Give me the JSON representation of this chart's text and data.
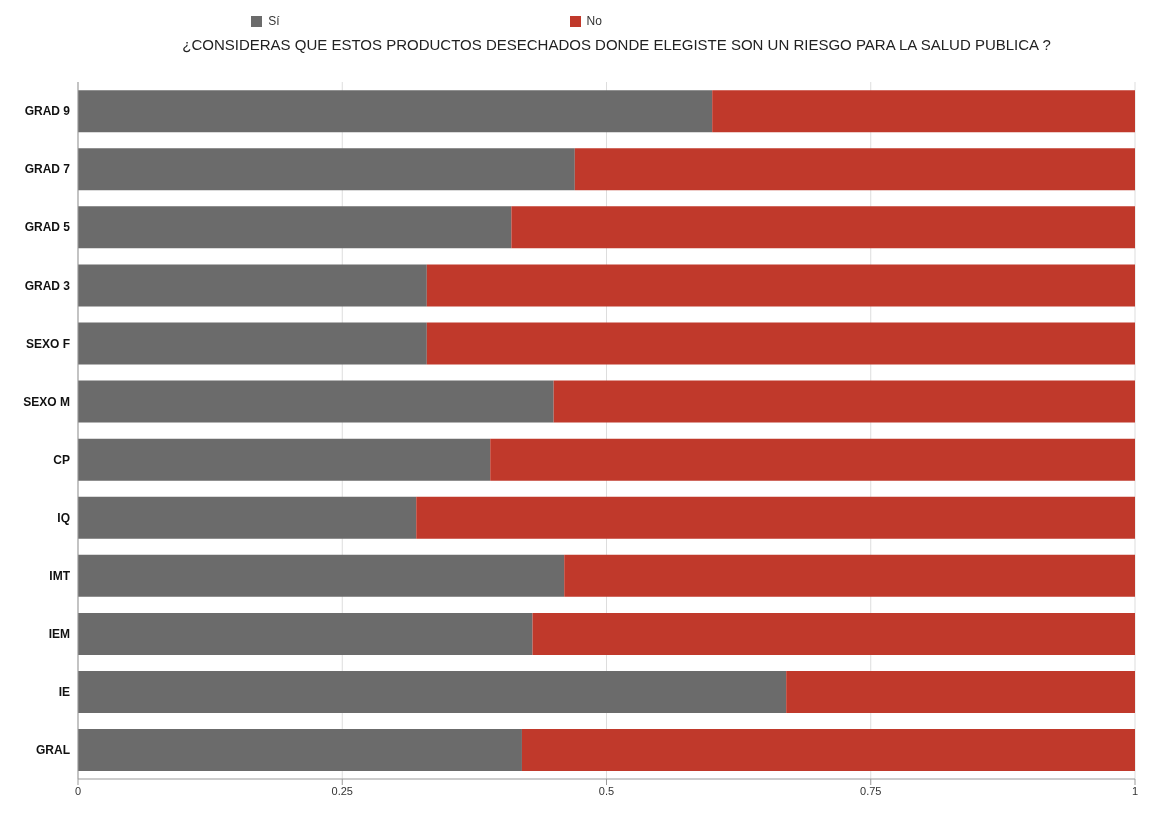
{
  "chart_data": {
    "type": "bar",
    "orientation": "horizontal",
    "stacked": true,
    "title": "¿CONSIDERAS QUE ESTOS PRODUCTOS DESECHADOS DONDE ELEGISTE SON UN RIESGO PARA LA SALUD PUBLICA ?",
    "categories": [
      "GRAD 9",
      "GRAD 7",
      "GRAD 5",
      "GRAD 3",
      "SEXO  F",
      "SEXO  M",
      "CP",
      "IQ",
      "IMT",
      "IEM",
      "IE",
      "GRAL"
    ],
    "series": [
      {
        "name": "Sí",
        "color": "#6b6b6b",
        "values": [
          0.6,
          0.47,
          0.41,
          0.33,
          0.33,
          0.45,
          0.39,
          0.32,
          0.46,
          0.43,
          0.67,
          0.42
        ]
      },
      {
        "name": "No",
        "color": "#c0392b",
        "values": [
          0.4,
          0.53,
          0.59,
          0.67,
          0.67,
          0.55,
          0.61,
          0.68,
          0.54,
          0.57,
          0.33,
          0.58
        ]
      }
    ],
    "xlim": [
      0,
      1
    ],
    "xticks": [
      0,
      0.25,
      0.5,
      0.75,
      1
    ],
    "grid": "x",
    "legend": "top"
  }
}
